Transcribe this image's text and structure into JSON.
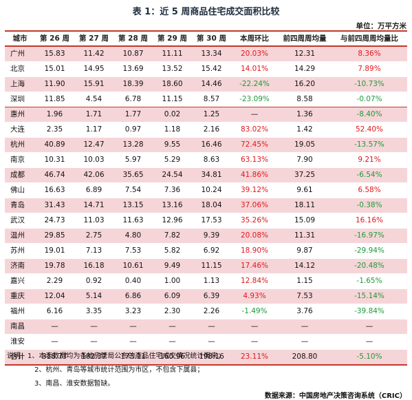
{
  "title": "表 1：近 5 周商品住宅成交面积比较",
  "unit": "单位：万平方米",
  "headers": [
    "城市",
    "第 26 周",
    "第 27 周",
    "第 28 周",
    "第 29 周",
    "第 30 周",
    "本周环比",
    "前四周周均量",
    "与前四周周均量比"
  ],
  "rows": [
    [
      "广州",
      "15.83",
      "11.42",
      "10.87",
      "11.11",
      "13.34",
      "20.03%",
      "12.31",
      "8.36%"
    ],
    [
      "北京",
      "15.01",
      "14.95",
      "13.69",
      "13.52",
      "15.42",
      "14.01%",
      "14.29",
      "7.89%"
    ],
    [
      "上海",
      "11.90",
      "15.91",
      "18.39",
      "18.60",
      "14.46",
      "-22.24%",
      "16.20",
      "-10.73%"
    ],
    [
      "深圳",
      "11.85",
      "4.54",
      "6.78",
      "11.15",
      "8.57",
      "-23.09%",
      "8.58",
      "-0.07%"
    ],
    [
      "惠州",
      "1.96",
      "1.71",
      "1.77",
      "0.02",
      "1.25",
      "—",
      "1.36",
      "-8.40%"
    ],
    [
      "大连",
      "2.35",
      "1.17",
      "0.97",
      "1.18",
      "2.16",
      "83.02%",
      "1.42",
      "52.40%"
    ],
    [
      "杭州",
      "40.89",
      "12.47",
      "13.28",
      "9.55",
      "16.46",
      "72.45%",
      "19.05",
      "-13.57%"
    ],
    [
      "南京",
      "10.31",
      "10.03",
      "5.97",
      "5.29",
      "8.63",
      "63.13%",
      "7.90",
      "9.21%"
    ],
    [
      "成都",
      "46.74",
      "42.06",
      "35.65",
      "24.54",
      "34.81",
      "41.86%",
      "37.25",
      "-6.54%"
    ],
    [
      "佛山",
      "16.63",
      "6.89",
      "7.54",
      "7.36",
      "10.24",
      "39.12%",
      "9.61",
      "6.58%"
    ],
    [
      "青岛",
      "31.43",
      "14.71",
      "13.15",
      "13.16",
      "18.04",
      "37.06%",
      "18.11",
      "-0.38%"
    ],
    [
      "武汉",
      "24.73",
      "11.03",
      "11.63",
      "12.96",
      "17.53",
      "35.26%",
      "15.09",
      "16.16%"
    ],
    [
      "温州",
      "29.85",
      "2.75",
      "4.80",
      "7.82",
      "9.39",
      "20.08%",
      "11.31",
      "-16.97%"
    ],
    [
      "苏州",
      "19.01",
      "7.13",
      "7.53",
      "5.82",
      "6.92",
      "18.90%",
      "9.87",
      "-29.94%"
    ],
    [
      "济南",
      "19.78",
      "16.18",
      "10.61",
      "9.49",
      "11.15",
      "17.46%",
      "14.12",
      "-20.48%"
    ],
    [
      "嘉兴",
      "2.29",
      "0.92",
      "0.40",
      "1.00",
      "1.13",
      "12.84%",
      "1.15",
      "-1.65%"
    ],
    [
      "重庆",
      "12.04",
      "5.14",
      "6.86",
      "6.09",
      "6.39",
      "4.93%",
      "7.53",
      "-15.14%"
    ],
    [
      "福州",
      "6.16",
      "3.35",
      "3.23",
      "2.30",
      "2.26",
      "-1.49%",
      "3.76",
      "-39.84%"
    ],
    [
      "南昌",
      "—",
      "—",
      "—",
      "—",
      "—",
      "—",
      "—",
      "—"
    ],
    [
      "淮安",
      "—",
      "—",
      "—",
      "—",
      "—",
      "—",
      "—",
      "—"
    ]
  ],
  "total": [
    "合计",
    "318.77",
    "182.37",
    "173.11",
    "160.96",
    "198.16",
    "23.11%",
    "208.80",
    "-5.10%"
  ],
  "notes": [
    "说明：1、本表数据均为各地房管局公布的商品住宅成交情况统计而来；",
    "2、杭州、青岛等城市统计范围为市区，不包含下属县；",
    "3、南昌、淮安数据暂缺。"
  ],
  "source": "数据来源：中国房地产决策咨询系统（CRIC）",
  "colors": {
    "positive": "#e3161b",
    "negative": "#1f9a3a",
    "band": "#f6d5d8",
    "rule": "#c0392b"
  }
}
